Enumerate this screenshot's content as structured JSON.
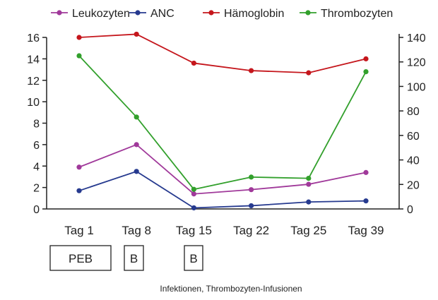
{
  "chart_data": {
    "type": "line",
    "categories": [
      "Tag 1",
      "Tag 8",
      "Tag 15",
      "Tag 22",
      "Tag 25",
      "Tag 39"
    ],
    "y_left": {
      "min": 0,
      "max": 16,
      "ticks": [
        0,
        2,
        4,
        6,
        8,
        10,
        12,
        14,
        16
      ]
    },
    "y_right": {
      "min": 0,
      "max": 140,
      "ticks": [
        0,
        20,
        40,
        60,
        80,
        100,
        120,
        140
      ]
    },
    "legend_position": "top",
    "grid": false,
    "series": [
      {
        "name": "Leukozyten",
        "color": "#a0399a",
        "axis": "left",
        "values": [
          3.9,
          6.0,
          1.4,
          1.8,
          2.3,
          3.4
        ]
      },
      {
        "name": "ANC",
        "color": "#263a8f",
        "axis": "left",
        "values": [
          1.7,
          3.5,
          0.1,
          0.3,
          0.65,
          0.75
        ]
      },
      {
        "name": "Hämoglobin",
        "color": "#c5161c",
        "axis": "left",
        "values": [
          16.0,
          16.3,
          13.6,
          12.9,
          12.7,
          14.0
        ]
      },
      {
        "name": "Thrombozyten",
        "color": "#32a02c",
        "axis": "right",
        "values": [
          125,
          75,
          16,
          26,
          25,
          112
        ]
      }
    ],
    "annotations": {
      "boxes": [
        {
          "label": "PEB",
          "category_from": 0,
          "category_to": 0
        },
        {
          "label": "B",
          "category_from": 1,
          "category_to": 1
        },
        {
          "label": "B",
          "category_from": 2,
          "category_to": 2
        }
      ],
      "footnote": "Infektionen, Thrombozyten-Infusionen"
    }
  }
}
